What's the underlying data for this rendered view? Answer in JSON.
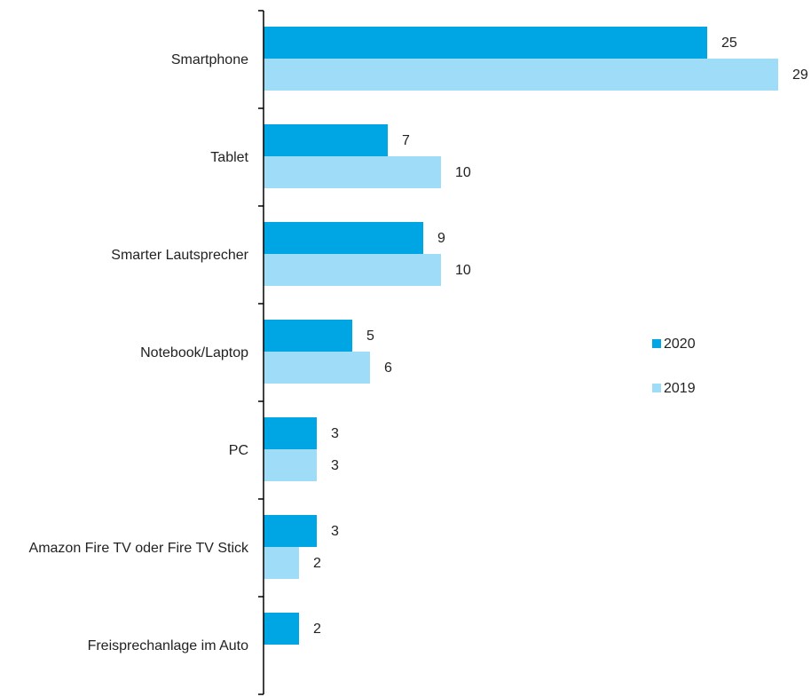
{
  "chart_data": {
    "type": "hbar",
    "categories": [
      "Smartphone",
      "Tablet",
      "Smarter Lautsprecher",
      "Notebook/Laptop",
      "PC",
      "Amazon Fire TV oder Fire TV Stick",
      "Freisprechanlage im Auto"
    ],
    "series": [
      {
        "name": "2020",
        "color": "#00a5e3",
        "values": [
          25,
          7,
          9,
          5,
          3,
          3,
          2
        ]
      },
      {
        "name": "2019",
        "color": "#9fdcf7",
        "values": [
          29,
          10,
          10,
          6,
          3,
          2,
          null
        ]
      }
    ],
    "xlim": [
      0,
      30
    ],
    "legend": "right"
  }
}
